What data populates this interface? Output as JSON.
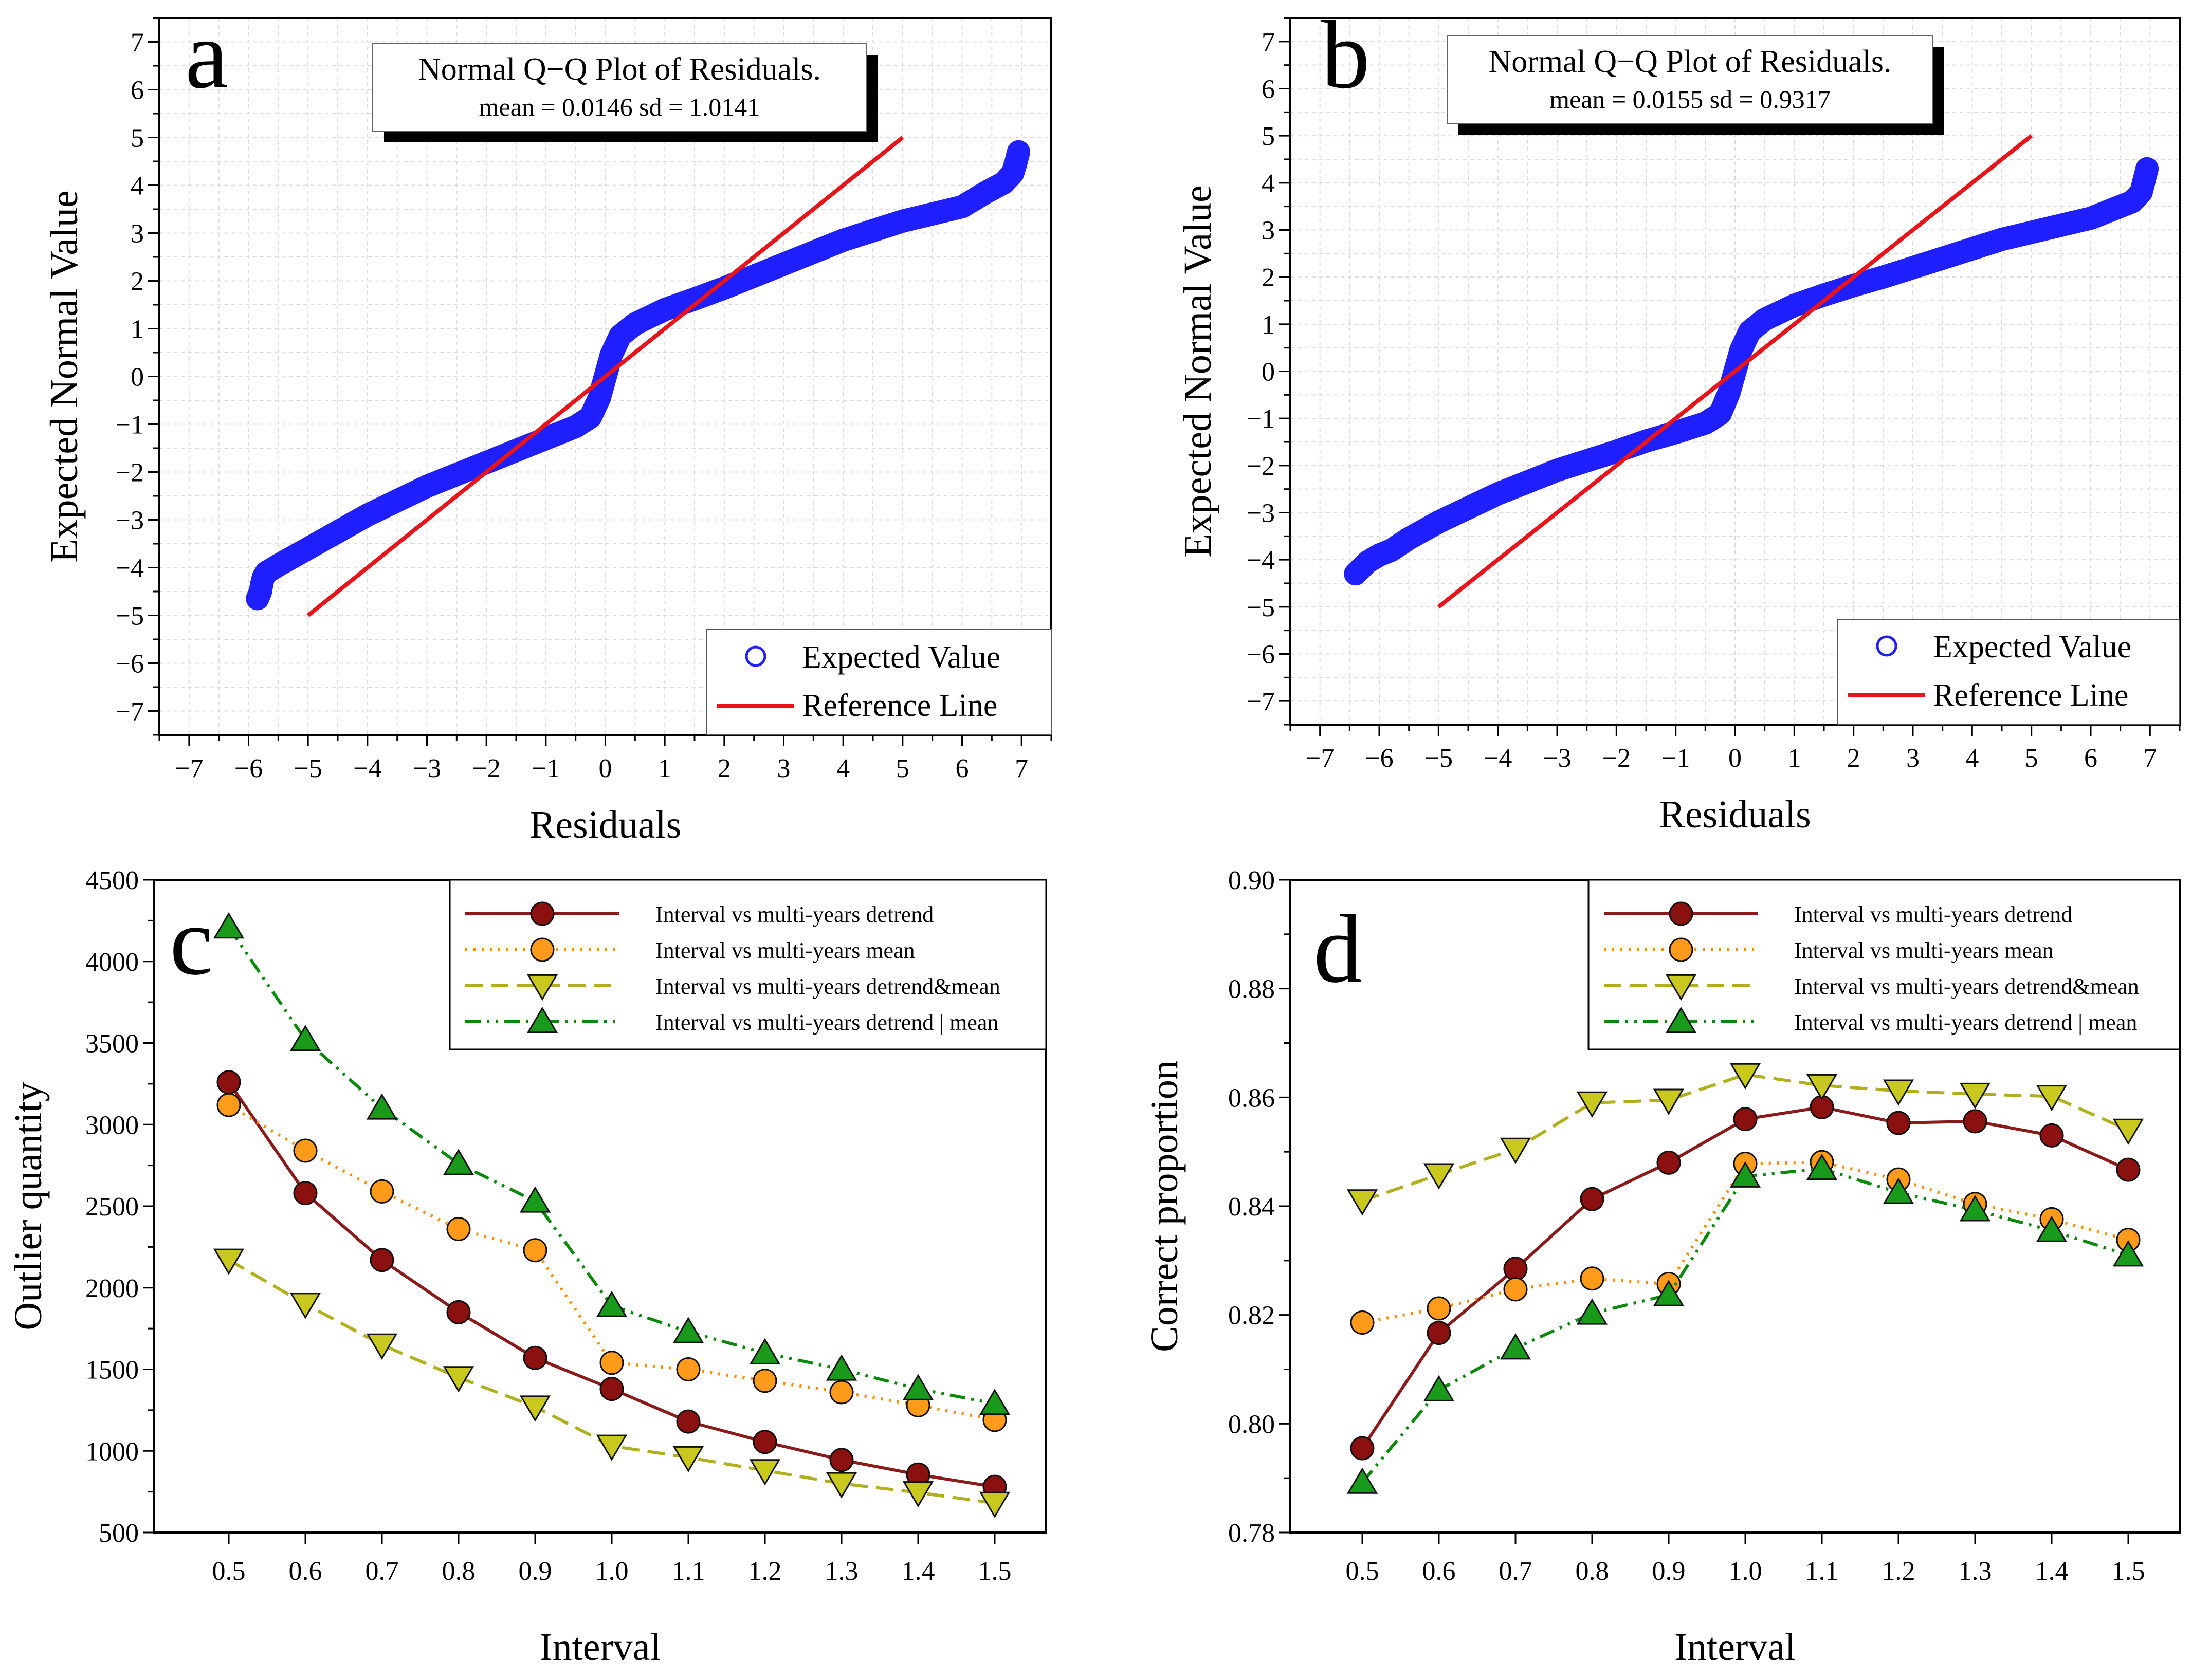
{
  "figure": {
    "panels": [
      "a",
      "b",
      "c",
      "d"
    ]
  },
  "chart_data": [
    {
      "id": "a",
      "type": "scatter",
      "panel_label": "a",
      "title": "Normal Q−Q Plot of Residuals.",
      "subtitle": "mean = 0.0146  sd = 1.0141",
      "xlabel": "Residuals",
      "ylabel": "Expected Normal Value",
      "xlim": [
        -7.5,
        7.5
      ],
      "ylim": [
        -7.5,
        7.5
      ],
      "xticks": [
        "−7",
        "−6",
        "−5",
        "−4",
        "−3",
        "−2",
        "−1",
        "0",
        "1",
        "2",
        "3",
        "4",
        "5",
        "6",
        "7"
      ],
      "yticks": [
        "7",
        "6",
        "5",
        "4",
        "3",
        "2",
        "1",
        "0",
        "−1",
        "−2",
        "−3",
        "−4",
        "−5",
        "−6",
        "−7"
      ],
      "grid": true,
      "legend_position": "bottom-right",
      "series": [
        {
          "name": "Expected Value",
          "kind": "markers",
          "color": "#1f1fff",
          "points": [
            [
              -5.85,
              -4.65
            ],
            [
              -5.8,
              -4.5
            ],
            [
              -5.78,
              -4.35
            ],
            [
              -5.75,
              -4.2
            ],
            [
              -5.7,
              -4.1
            ],
            [
              -5.5,
              -3.95
            ],
            [
              -5.0,
              -3.6
            ],
            [
              -4.5,
              -3.25
            ],
            [
              -4.0,
              -2.9
            ],
            [
              -3.5,
              -2.6
            ],
            [
              -3.0,
              -2.3
            ],
            [
              -2.5,
              -2.05
            ],
            [
              -2.0,
              -1.8
            ],
            [
              -1.5,
              -1.55
            ],
            [
              -1.0,
              -1.3
            ],
            [
              -0.5,
              -1.05
            ],
            [
              -0.25,
              -0.85
            ],
            [
              -0.1,
              -0.45
            ],
            [
              0.0,
              0.0
            ],
            [
              0.1,
              0.45
            ],
            [
              0.25,
              0.85
            ],
            [
              0.5,
              1.1
            ],
            [
              1.0,
              1.4
            ],
            [
              1.5,
              1.62
            ],
            [
              2.0,
              1.85
            ],
            [
              2.5,
              2.1
            ],
            [
              3.0,
              2.35
            ],
            [
              3.5,
              2.6
            ],
            [
              4.0,
              2.85
            ],
            [
              4.5,
              3.05
            ],
            [
              5.0,
              3.25
            ],
            [
              5.5,
              3.4
            ],
            [
              6.0,
              3.55
            ],
            [
              6.4,
              3.85
            ],
            [
              6.7,
              4.05
            ],
            [
              6.85,
              4.25
            ],
            [
              6.9,
              4.45
            ],
            [
              6.95,
              4.7
            ]
          ]
        },
        {
          "name": "Reference Line",
          "kind": "line",
          "color": "#e8141a",
          "points": [
            [
              -5,
              -5
            ],
            [
              5,
              5
            ]
          ]
        }
      ]
    },
    {
      "id": "b",
      "type": "scatter",
      "panel_label": "b",
      "title": "Normal Q−Q Plot of Residuals.",
      "subtitle": "mean = 0.0155  sd = 0.9317",
      "xlabel": "Residuals",
      "ylabel": "Expected Normal Value",
      "xlim": [
        -7.5,
        7.5
      ],
      "ylim": [
        -7.5,
        7.5
      ],
      "xticks": [
        "−7",
        "−6",
        "−5",
        "−4",
        "−3",
        "−2",
        "−1",
        "0",
        "1",
        "2",
        "3",
        "4",
        "5",
        "6",
        "7"
      ],
      "yticks": [
        "7",
        "6",
        "5",
        "4",
        "3",
        "2",
        "1",
        "0",
        "−1",
        "−2",
        "−3",
        "−4",
        "−5",
        "−6",
        "−7"
      ],
      "grid": true,
      "legend_position": "bottom-right",
      "series": [
        {
          "name": "Expected Value",
          "kind": "markers",
          "color": "#1f1fff",
          "points": [
            [
              -6.4,
              -4.3
            ],
            [
              -6.2,
              -4.05
            ],
            [
              -6.0,
              -3.9
            ],
            [
              -5.8,
              -3.8
            ],
            [
              -5.5,
              -3.55
            ],
            [
              -5.0,
              -3.2
            ],
            [
              -4.5,
              -2.9
            ],
            [
              -4.0,
              -2.6
            ],
            [
              -3.5,
              -2.35
            ],
            [
              -3.0,
              -2.1
            ],
            [
              -2.5,
              -1.9
            ],
            [
              -2.0,
              -1.7
            ],
            [
              -1.5,
              -1.48
            ],
            [
              -1.0,
              -1.3
            ],
            [
              -0.5,
              -1.1
            ],
            [
              -0.25,
              -0.9
            ],
            [
              -0.1,
              -0.45
            ],
            [
              0.0,
              0.0
            ],
            [
              0.1,
              0.45
            ],
            [
              0.25,
              0.85
            ],
            [
              0.5,
              1.1
            ],
            [
              1.0,
              1.4
            ],
            [
              1.5,
              1.62
            ],
            [
              2.0,
              1.82
            ],
            [
              2.5,
              2.0
            ],
            [
              3.0,
              2.2
            ],
            [
              3.5,
              2.4
            ],
            [
              4.0,
              2.6
            ],
            [
              4.5,
              2.8
            ],
            [
              5.0,
              2.95
            ],
            [
              5.5,
              3.1
            ],
            [
              6.0,
              3.25
            ],
            [
              6.4,
              3.45
            ],
            [
              6.7,
              3.6
            ],
            [
              6.85,
              3.8
            ],
            [
              6.9,
              4.05
            ],
            [
              6.95,
              4.3
            ]
          ]
        },
        {
          "name": "Reference Line",
          "kind": "line",
          "color": "#e8141a",
          "points": [
            [
              -5,
              -5
            ],
            [
              5,
              5
            ]
          ]
        }
      ]
    },
    {
      "id": "c",
      "type": "line",
      "panel_label": "c",
      "title": "",
      "xlabel": "Interval",
      "ylabel": "Outlier quantity",
      "categories": [
        "0.5",
        "0.6",
        "0.7",
        "0.8",
        "0.9",
        "1.0",
        "1.1",
        "1.2",
        "1.3",
        "1.4",
        "1.5"
      ],
      "ylim": [
        500,
        4500
      ],
      "yticks": [
        "4500",
        "4000",
        "3500",
        "3000",
        "2500",
        "2000",
        "1500",
        "1000",
        "500"
      ],
      "grid": false,
      "legend_position": "top-right",
      "series": [
        {
          "name": "Interval vs multi-years detrend",
          "color": "#8b1a1a",
          "marker_fill": "#8b1010",
          "marker": "circle",
          "dash": "",
          "values": [
            3260,
            2580,
            2170,
            1850,
            1570,
            1380,
            1180,
            1055,
            945,
            855,
            780
          ]
        },
        {
          "name": "Interval vs multi-years mean",
          "color": "#ff8c00",
          "marker_fill": "#ff9a1a",
          "marker": "circle",
          "dash": "4 12",
          "values": [
            3120,
            2840,
            2590,
            2360,
            2230,
            1540,
            1500,
            1430,
            1360,
            1280,
            1190
          ]
        },
        {
          "name": "Interval vs multi-years detrend&mean",
          "color": "#b0b01c",
          "marker_fill": "#c8c81e",
          "marker": "triangle-down",
          "dash": "34 16",
          "values": [
            2170,
            1900,
            1650,
            1450,
            1270,
            1030,
            960,
            880,
            800,
            745,
            680
          ]
        },
        {
          "name": "Interval vs multi-years detrend | mean",
          "color": "#0a8a0a",
          "marker_fill": "#1a9a1a",
          "marker": "triangle-up",
          "dash": "30 12 5 12 5 12",
          "values": [
            4210,
            3520,
            3100,
            2760,
            2530,
            1890,
            1730,
            1600,
            1500,
            1380,
            1290
          ]
        }
      ]
    },
    {
      "id": "d",
      "type": "line",
      "panel_label": "d",
      "title": "",
      "xlabel": "Interval",
      "ylabel": "Correct proportion",
      "categories": [
        "0.5",
        "0.6",
        "0.7",
        "0.8",
        "0.9",
        "1.0",
        "1.1",
        "1.2",
        "1.3",
        "1.4",
        "1.5"
      ],
      "ylim": [
        0.78,
        0.9
      ],
      "yticks": [
        "0.90",
        "0.88",
        "0.86",
        "0.84",
        "0.82",
        "0.80",
        "0.78"
      ],
      "grid": false,
      "legend_position": "top-right",
      "series": [
        {
          "name": "Interval vs multi-years detrend",
          "color": "#8b1a1a",
          "marker_fill": "#8b1010",
          "marker": "circle",
          "dash": "",
          "values": [
            0.7955,
            0.8167,
            0.8285,
            0.8413,
            0.848,
            0.856,
            0.8582,
            0.8553,
            0.8556,
            0.853,
            0.8467
          ]
        },
        {
          "name": "Interval vs multi-years mean",
          "color": "#ff8c00",
          "marker_fill": "#ff9a1a",
          "marker": "circle",
          "dash": "4 12",
          "values": [
            0.8186,
            0.8212,
            0.8247,
            0.8267,
            0.8257,
            0.8478,
            0.8481,
            0.8449,
            0.8404,
            0.8376,
            0.8338
          ]
        },
        {
          "name": "Interval vs multi-years detrend&mean",
          "color": "#b0b01c",
          "marker_fill": "#c8c81e",
          "marker": "triangle-down",
          "dash": "34 16",
          "values": [
            0.841,
            0.8458,
            0.8505,
            0.859,
            0.8595,
            0.8642,
            0.8622,
            0.8612,
            0.8606,
            0.8602,
            0.854
          ]
        },
        {
          "name": "Interval vs multi-years detrend | mean",
          "color": "#0a8a0a",
          "marker_fill": "#1a9a1a",
          "marker": "triangle-up",
          "dash": "30 12 5 12 5 12",
          "values": [
            0.7892,
            0.8062,
            0.8139,
            0.8203,
            0.8237,
            0.8455,
            0.8469,
            0.8425,
            0.8393,
            0.8355,
            0.831
          ]
        }
      ]
    }
  ]
}
